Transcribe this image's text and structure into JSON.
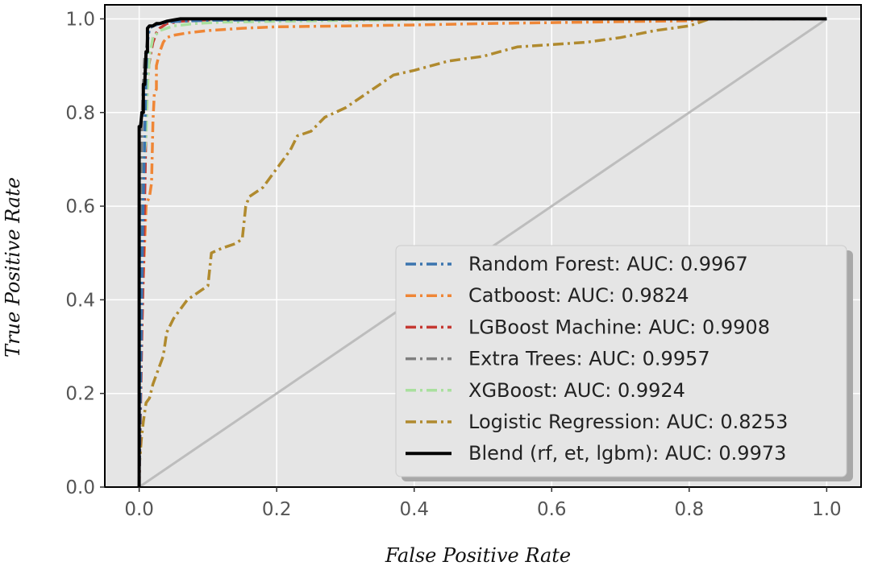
{
  "chart_data": {
    "type": "line",
    "title": "",
    "xlabel": "False Positive Rate",
    "ylabel": "True Positive Rate",
    "xlim": [
      -0.05,
      1.05
    ],
    "ylim": [
      0.0,
      1.03
    ],
    "xticks": [
      0.0,
      0.2,
      0.4,
      0.6,
      0.8,
      1.0
    ],
    "yticks": [
      0.0,
      0.2,
      0.4,
      0.6,
      0.8,
      1.0
    ],
    "xtick_labels": [
      "0.0",
      "0.2",
      "0.4",
      "0.6",
      "0.8",
      "1.0"
    ],
    "ytick_labels": [
      "0.0",
      "0.2",
      "0.4",
      "0.6",
      "0.8",
      "1.0"
    ],
    "grid": true,
    "legend_position": "lower-right",
    "background": "#e5e5e5",
    "grid_color": "#ffffff",
    "diagonal": {
      "x": [
        0,
        1
      ],
      "y": [
        0,
        1
      ],
      "color": "#bdbdbd"
    },
    "series": [
      {
        "name": "Random Forest: AUC: 0.9967",
        "color": "#3b75af",
        "style": "dashdot",
        "x": [
          0,
          0.005,
          0.008,
          0.01,
          0.012,
          0.015,
          0.02,
          0.03,
          0.04,
          0.06,
          0.1,
          0.2,
          0.4,
          1.0
        ],
        "y": [
          0,
          0.55,
          0.75,
          0.88,
          0.95,
          0.98,
          0.985,
          0.99,
          0.993,
          0.995,
          0.997,
          0.998,
          1.0,
          1.0
        ]
      },
      {
        "name": "Catboost: AUC: 0.9824",
        "color": "#ef8636",
        "style": "dashdot",
        "x": [
          0,
          0.003,
          0.006,
          0.01,
          0.012,
          0.015,
          0.018,
          0.02,
          0.022,
          0.025,
          0.025,
          0.03,
          0.035,
          0.04,
          0.05,
          0.07,
          0.1,
          0.15,
          0.2,
          0.3,
          0.4,
          0.5,
          0.6,
          0.7,
          0.8,
          0.83
        ],
        "y": [
          0,
          0.3,
          0.45,
          0.6,
          0.61,
          0.62,
          0.65,
          0.78,
          0.84,
          0.85,
          0.9,
          0.93,
          0.95,
          0.96,
          0.965,
          0.97,
          0.975,
          0.98,
          0.983,
          0.985,
          0.987,
          0.99,
          0.992,
          0.994,
          0.996,
          1.0
        ]
      },
      {
        "name": "LGBoost Machine: AUC: 0.9908",
        "color": "#c53932",
        "style": "dashdot",
        "x": [
          0,
          0.004,
          0.006,
          0.008,
          0.01,
          0.012,
          0.014,
          0.016,
          0.02,
          0.025,
          0.03,
          0.04,
          0.06,
          0.1,
          0.3,
          1.0
        ],
        "y": [
          0,
          0.33,
          0.47,
          0.62,
          0.78,
          0.86,
          0.9,
          0.92,
          0.95,
          0.97,
          0.98,
          0.99,
          0.995,
          0.998,
          1.0,
          1.0
        ]
      },
      {
        "name": "Extra Trees: AUC: 0.9957",
        "color": "#7f7f7f",
        "style": "dashdot",
        "x": [
          0,
          0.002,
          0.004,
          0.006,
          0.008,
          0.01,
          0.012,
          0.015,
          0.02,
          0.03,
          0.05,
          0.1,
          0.3,
          1.0
        ],
        "y": [
          0,
          0.6,
          0.78,
          0.86,
          0.92,
          0.93,
          0.96,
          0.98,
          0.985,
          0.99,
          0.995,
          0.998,
          1.0,
          1.0
        ]
      },
      {
        "name": "XGBoost: AUC: 0.9924",
        "color": "#a9e09e",
        "style": "dashdot",
        "x": [
          0,
          0.003,
          0.005,
          0.007,
          0.01,
          0.012,
          0.015,
          0.02,
          0.03,
          0.05,
          0.08,
          0.12,
          0.2,
          0.3,
          0.5
        ],
        "y": [
          0,
          0.5,
          0.62,
          0.7,
          0.75,
          0.85,
          0.92,
          0.96,
          0.975,
          0.985,
          0.99,
          0.993,
          0.995,
          0.997,
          1.0
        ]
      },
      {
        "name": "Logistic Regression: AUC: 0.8253",
        "color": "#b08a2e",
        "style": "dashdot",
        "x": [
          0,
          0.003,
          0.006,
          0.01,
          0.015,
          0.02,
          0.03,
          0.035,
          0.04,
          0.05,
          0.06,
          0.07,
          0.08,
          0.09,
          0.1,
          0.105,
          0.12,
          0.14,
          0.15,
          0.155,
          0.16,
          0.18,
          0.2,
          0.22,
          0.23,
          0.25,
          0.27,
          0.3,
          0.32,
          0.33,
          0.35,
          0.37,
          0.4,
          0.45,
          0.5,
          0.55,
          0.6,
          0.65,
          0.7,
          0.75,
          0.8,
          0.83
        ],
        "y": [
          0.04,
          0.1,
          0.14,
          0.18,
          0.19,
          0.22,
          0.26,
          0.28,
          0.33,
          0.36,
          0.38,
          0.4,
          0.41,
          0.42,
          0.43,
          0.5,
          0.51,
          0.52,
          0.53,
          0.6,
          0.62,
          0.64,
          0.68,
          0.72,
          0.75,
          0.76,
          0.79,
          0.81,
          0.83,
          0.84,
          0.86,
          0.88,
          0.89,
          0.91,
          0.92,
          0.94,
          0.945,
          0.95,
          0.96,
          0.975,
          0.985,
          1.0
        ]
      },
      {
        "name": "Blend (rf, et, lgbm): AUC: 0.9973",
        "color": "#000000",
        "style": "solid",
        "x": [
          0,
          0,
          0.002,
          0.004,
          0.006,
          0.006,
          0.008,
          0.01,
          0.012,
          0.012,
          0.015,
          0.02,
          0.025,
          0.03,
          0.04,
          0.06,
          0.1,
          0.2,
          0.4,
          0.6,
          0.8,
          1.0
        ],
        "y": [
          0,
          0.77,
          0.77,
          0.8,
          0.8,
          0.86,
          0.86,
          0.93,
          0.93,
          0.98,
          0.985,
          0.985,
          0.99,
          0.99,
          0.995,
          1.0,
          1.0,
          1.0,
          1.0,
          1.0,
          1.0,
          1.0
        ]
      }
    ]
  }
}
